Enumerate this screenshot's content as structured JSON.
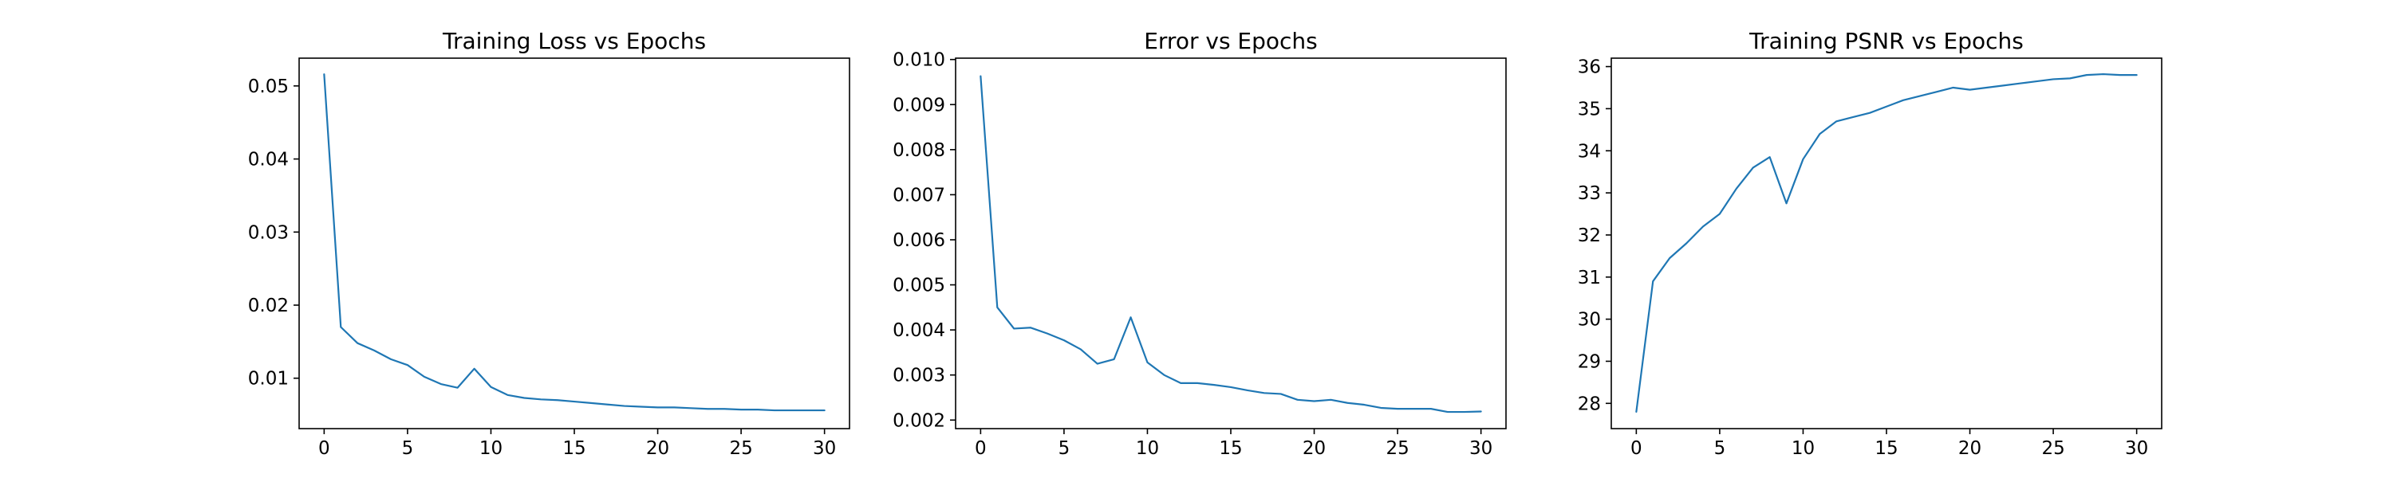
{
  "style": {
    "line_color": "#1f77b4"
  },
  "chart_data": [
    {
      "type": "line",
      "title": "Training Loss vs Epochs",
      "xlabel": "",
      "ylabel": "",
      "grid": false,
      "xlim": [
        -1.5,
        31.5
      ],
      "ylim": [
        0.0031,
        0.0538
      ],
      "x_ticks": [
        0,
        5,
        10,
        15,
        20,
        25,
        30
      ],
      "y_ticks": [
        0.01,
        0.02,
        0.03,
        0.04,
        0.05
      ],
      "y_tick_labels": [
        "0.01",
        "0.02",
        "0.03",
        "0.04",
        "0.05"
      ],
      "x": [
        0,
        1,
        2,
        3,
        4,
        5,
        6,
        7,
        8,
        9,
        10,
        11,
        12,
        13,
        14,
        15,
        16,
        17,
        18,
        19,
        20,
        21,
        22,
        23,
        24,
        25,
        26,
        27,
        28,
        29,
        30
      ],
      "series": [
        {
          "values": [
            0.0516,
            0.017,
            0.0148,
            0.0138,
            0.0126,
            0.0118,
            0.0102,
            0.0092,
            0.0087,
            0.0113,
            0.0088,
            0.0077,
            0.0073,
            0.0071,
            0.007,
            0.0068,
            0.0066,
            0.0064,
            0.0062,
            0.0061,
            0.006,
            0.006,
            0.0059,
            0.0058,
            0.0058,
            0.0057,
            0.0057,
            0.0056,
            0.0056,
            0.0056,
            0.0056
          ]
        }
      ]
    },
    {
      "type": "line",
      "title": "Error vs Epochs",
      "xlabel": "",
      "ylabel": "",
      "grid": false,
      "xlim": [
        -1.5,
        31.5
      ],
      "ylim": [
        0.00181,
        0.01003
      ],
      "x_ticks": [
        0,
        5,
        10,
        15,
        20,
        25,
        30
      ],
      "y_ticks": [
        0.002,
        0.003,
        0.004,
        0.005,
        0.006,
        0.007,
        0.008,
        0.009,
        0.01
      ],
      "y_tick_labels": [
        "0.002",
        "0.003",
        "0.004",
        "0.005",
        "0.006",
        "0.007",
        "0.008",
        "0.009",
        "0.010"
      ],
      "x": [
        0,
        1,
        2,
        3,
        4,
        5,
        6,
        7,
        8,
        9,
        10,
        11,
        12,
        13,
        14,
        15,
        16,
        17,
        18,
        19,
        20,
        21,
        22,
        23,
        24,
        25,
        26,
        27,
        28,
        29,
        30
      ],
      "series": [
        {
          "values": [
            0.00963,
            0.0045,
            0.00403,
            0.00405,
            0.00392,
            0.00377,
            0.00357,
            0.00325,
            0.00335,
            0.00428,
            0.00328,
            0.003,
            0.00282,
            0.00282,
            0.00278,
            0.00273,
            0.00266,
            0.0026,
            0.00258,
            0.00245,
            0.00242,
            0.00245,
            0.00238,
            0.00234,
            0.00227,
            0.00225,
            0.00225,
            0.00225,
            0.00218,
            0.00218,
            0.00219
          ]
        }
      ]
    },
    {
      "type": "line",
      "title": "Training PSNR vs Epochs",
      "xlabel": "",
      "ylabel": "",
      "grid": false,
      "xlim": [
        -1.5,
        31.5
      ],
      "ylim": [
        27.4,
        36.2
      ],
      "x_ticks": [
        0,
        5,
        10,
        15,
        20,
        25,
        30
      ],
      "y_ticks": [
        28,
        29,
        30,
        31,
        32,
        33,
        34,
        35,
        36
      ],
      "y_tick_labels": [
        "28",
        "29",
        "30",
        "31",
        "32",
        "33",
        "34",
        "35",
        "36"
      ],
      "x": [
        0,
        1,
        2,
        3,
        4,
        5,
        6,
        7,
        8,
        9,
        10,
        11,
        12,
        13,
        14,
        15,
        16,
        17,
        18,
        19,
        20,
        21,
        22,
        23,
        24,
        25,
        26,
        27,
        28,
        29,
        30
      ],
      "series": [
        {
          "values": [
            27.8,
            30.9,
            31.45,
            31.8,
            32.2,
            32.5,
            33.1,
            33.6,
            33.85,
            32.75,
            33.8,
            34.4,
            34.7,
            34.8,
            34.9,
            35.05,
            35.2,
            35.3,
            35.4,
            35.5,
            35.45,
            35.5,
            35.55,
            35.6,
            35.65,
            35.7,
            35.72,
            35.8,
            35.82,
            35.8,
            35.8
          ]
        }
      ]
    }
  ]
}
